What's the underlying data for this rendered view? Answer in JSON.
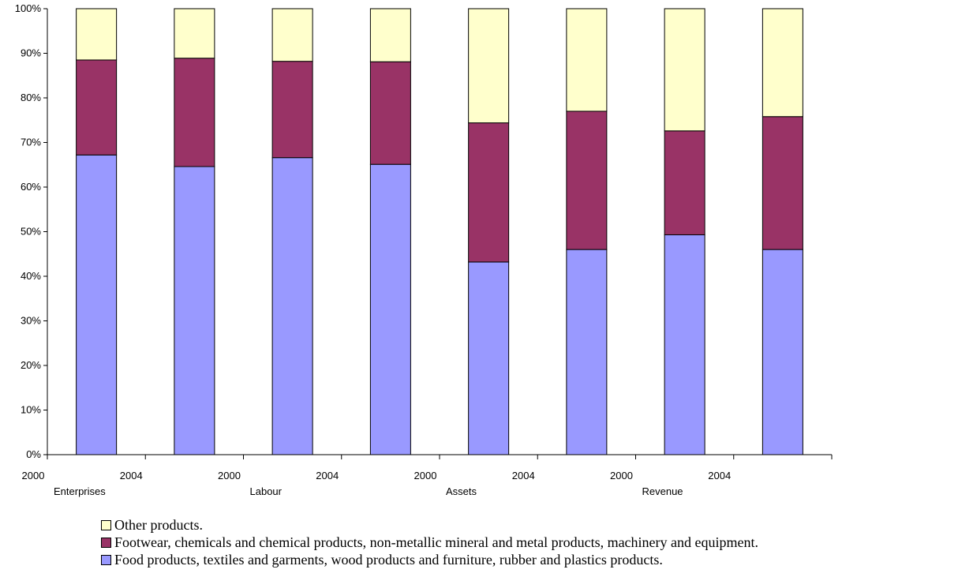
{
  "chart_data": {
    "type": "bar",
    "stacked": true,
    "normalized": true,
    "title": "",
    "xlabel": "",
    "ylabel": "",
    "ylim": [
      0,
      100
    ],
    "y_tick_labels": [
      "0%",
      "10%",
      "20%",
      "30%",
      "40%",
      "50%",
      "60%",
      "70%",
      "80%",
      "90%",
      "100%"
    ],
    "groups": [
      "Enterprises",
      "Labour",
      "Assets",
      "Revenue"
    ],
    "group_year_labels": [
      "2000",
      "2004"
    ],
    "categories": [
      "Enterprises 2000",
      "Enterprises 2004",
      "Labour 2000",
      "Labour 2004",
      "Assets 2000",
      "Assets 2004",
      "Revenue 2000",
      "Revenue 2004"
    ],
    "series": [
      {
        "name": "Food products, textiles and garments, wood products and furniture, rubber and plastics products.",
        "color": "#9999ff",
        "values": [
          67.2,
          64.6,
          66.6,
          65.1,
          43.2,
          46.0,
          49.3,
          46.0
        ]
      },
      {
        "name": "Footwear, chemicals and chemical products, non-metallic mineral and metal products, machinery and equipment.",
        "color": "#993366",
        "values": [
          21.3,
          24.3,
          21.6,
          23.0,
          31.2,
          31.0,
          23.3,
          29.8
        ]
      },
      {
        "name": "Other products.",
        "color": "#ffffcc",
        "values": [
          11.5,
          11.1,
          11.8,
          11.9,
          25.6,
          23.0,
          27.4,
          24.2
        ]
      }
    ],
    "legend_placement": "bottom",
    "legend_order": [
      2,
      1,
      0
    ],
    "grid": false
  }
}
